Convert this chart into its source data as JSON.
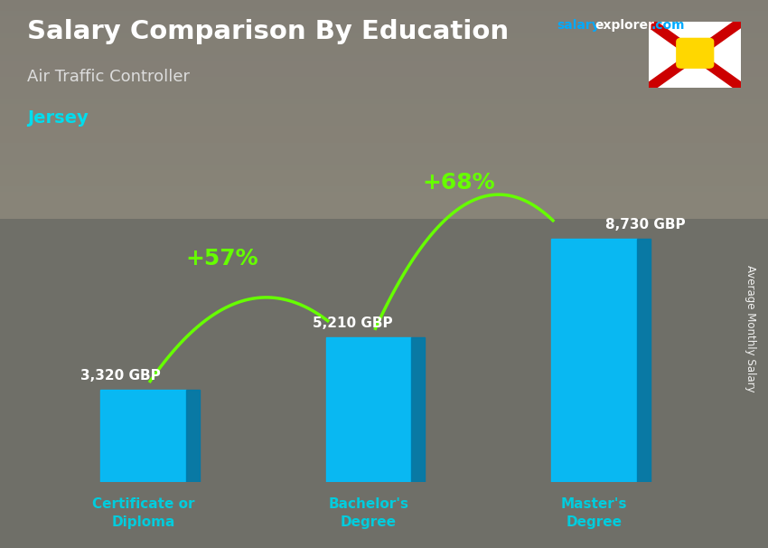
{
  "title": "Salary Comparison By Education",
  "subtitle": "Air Traffic Controller",
  "location": "Jersey",
  "ylabel": "Average Monthly Salary",
  "categories": [
    "Certificate or\nDiploma",
    "Bachelor's\nDegree",
    "Master's\nDegree"
  ],
  "values": [
    3320,
    5210,
    8730
  ],
  "value_labels": [
    "3,320 GBP",
    "5,210 GBP",
    "8,730 GBP"
  ],
  "pct_changes": [
    "+57%",
    "+68%"
  ],
  "bar_color_face": "#00BFFF",
  "bar_color_side": "#007AAA",
  "bar_color_top": "#55DDFF",
  "arrow_color": "#66FF00",
  "title_color": "#FFFFFF",
  "subtitle_color": "#DDDDDD",
  "location_color": "#00DDEE",
  "label_color": "#FFFFFF",
  "tick_label_color": "#00CCDD",
  "value_label_color": "#FFFFFF",
  "salary_color1": "#00AAFF",
  "salary_color2": "#FFFFFF",
  "bg_color": "#6B7B7B",
  "ylim": [
    0,
    11000
  ],
  "bar_width": 0.38,
  "figsize": [
    8.5,
    6.06
  ],
  "dpi": 100
}
